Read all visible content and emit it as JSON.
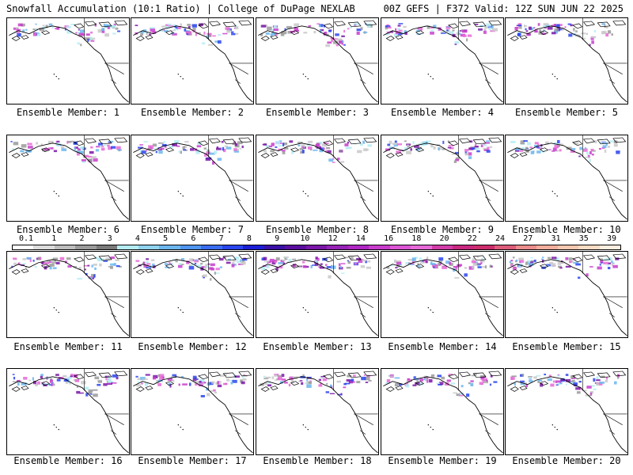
{
  "header": {
    "left": "Snowfall Accumulation (10:1 Ratio) | College of DuPage NEXLAB",
    "right": "00Z GEFS | F372 Valid: 12Z SUN JUN 22 2025"
  },
  "panels": [
    {
      "label": "Ensemble Member: 1"
    },
    {
      "label": "Ensemble Member: 2"
    },
    {
      "label": "Ensemble Member: 3"
    },
    {
      "label": "Ensemble Member: 4"
    },
    {
      "label": "Ensemble Member: 5"
    },
    {
      "label": "Ensemble Member: 6"
    },
    {
      "label": "Ensemble Member: 7"
    },
    {
      "label": "Ensemble Member: 8"
    },
    {
      "label": "Ensemble Member: 9"
    },
    {
      "label": "Ensemble Member: 10"
    },
    {
      "label": "Ensemble Member: 11"
    },
    {
      "label": "Ensemble Member: 12"
    },
    {
      "label": "Ensemble Member: 13"
    },
    {
      "label": "Ensemble Member: 14"
    },
    {
      "label": "Ensemble Member: 15"
    },
    {
      "label": "Ensemble Member: 16"
    },
    {
      "label": "Ensemble Member: 17"
    },
    {
      "label": "Ensemble Member: 18"
    },
    {
      "label": "Ensemble Member: 19"
    },
    {
      "label": "Ensemble Member: 20"
    }
  ],
  "colorbar": {
    "labels": [
      "0.1",
      "1",
      "2",
      "3",
      "4",
      "5",
      "6",
      "7",
      "8",
      "9",
      "10",
      "12",
      "14",
      "16",
      "18",
      "20",
      "22",
      "24",
      "27",
      "31",
      "35",
      "39"
    ],
    "colors": [
      "#ffffff",
      "#dcdcdc",
      "#bdbdbd",
      "#9a9a9a",
      "#7a7a7a",
      "#b4ecf4",
      "#8fd3ee",
      "#6cb6ee",
      "#4f94ee",
      "#3a6cf0",
      "#2a44ee",
      "#1c1ed6",
      "#3a10a6",
      "#5a0e9e",
      "#7a16a8",
      "#9622b6",
      "#b026c2",
      "#c83ccc",
      "#dc56d4",
      "#e66ad6",
      "#d23ca8",
      "#c8287e",
      "#cc2c6c",
      "#dc5c7a",
      "#ea8c8c",
      "#f2ae9c",
      "#f6c8b0",
      "#fadcc4",
      "#fdeedf"
    ]
  }
}
